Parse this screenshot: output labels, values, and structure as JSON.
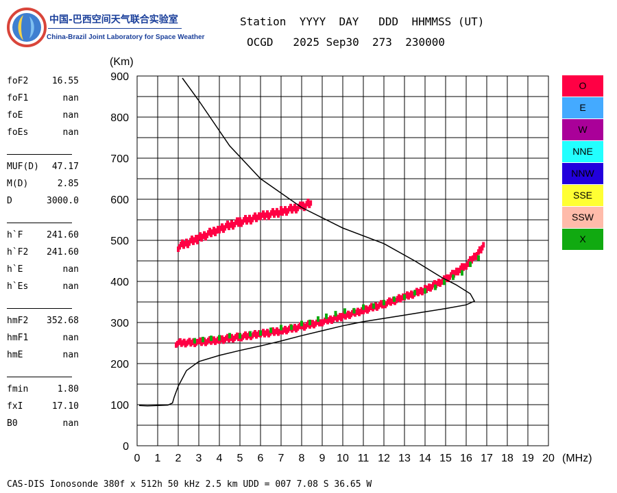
{
  "logo": {
    "cn_text": "中国-巴西空间天气联合实验室",
    "en_text": "China-Brazil Joint Laboratory for Space Weather"
  },
  "header": {
    "line1": "Station  YYYY  DAY   DDD  HHMMSS (UT)",
    "line2": "OCGD   2025 Sep30  273  230000"
  },
  "params": [
    {
      "key": "foF2",
      "value": "16.55"
    },
    {
      "key": "foF1",
      "value": "nan"
    },
    {
      "key": "foE",
      "value": "nan"
    },
    {
      "key": "foEs",
      "value": "nan"
    },
    {
      "key": "MUF(D)",
      "value": "47.17"
    },
    {
      "key": "M(D)",
      "value": "2.85"
    },
    {
      "key": "D",
      "value": "3000.0"
    },
    {
      "key": "h`F",
      "value": "241.60"
    },
    {
      "key": "h`F2",
      "value": "241.60"
    },
    {
      "key": "h`E",
      "value": "nan"
    },
    {
      "key": "h`Es",
      "value": "nan"
    },
    {
      "key": "hmF2",
      "value": "352.68"
    },
    {
      "key": "hmF1",
      "value": "nan"
    },
    {
      "key": "hmE",
      "value": "nan"
    },
    {
      "key": "fmin",
      "value": "1.80"
    },
    {
      "key": "fxI",
      "value": "17.10"
    },
    {
      "key": "B0",
      "value": "nan"
    }
  ],
  "legend": [
    {
      "label": "O",
      "color": "#ff0044"
    },
    {
      "label": "E",
      "color": "#44aaff"
    },
    {
      "label": "W",
      "color": "#aa0099"
    },
    {
      "label": "NNE",
      "color": "#22ffff"
    },
    {
      "label": "NNW",
      "color": "#2200dd"
    },
    {
      "label": "SSE",
      "color": "#ffff33"
    },
    {
      "label": "SSW",
      "color": "#ffbbaa"
    },
    {
      "label": "X",
      "color": "#11aa11"
    }
  ],
  "footer": "CAS-DIS Ionosonde 380f x 512h 50 kHz 2.5 km UDD = 007 7.08 S 36.65 W",
  "chart_data": {
    "type": "scatter",
    "xlabel": "(MHz)",
    "ylabel": "(Km)",
    "xlim": [
      0,
      20
    ],
    "ylim": [
      0,
      900
    ],
    "x_ticks": [
      0,
      1,
      2,
      3,
      4,
      5,
      6,
      7,
      8,
      9,
      10,
      11,
      12,
      13,
      14,
      15,
      16,
      17,
      18,
      19,
      20
    ],
    "y_ticks": [
      0,
      100,
      200,
      300,
      400,
      500,
      600,
      700,
      800,
      900
    ],
    "grid": true,
    "o_trace": [
      [
        1.9,
        250
      ],
      [
        3,
        252
      ],
      [
        4,
        258
      ],
      [
        5,
        265
      ],
      [
        6,
        272
      ],
      [
        7,
        280
      ],
      [
        8,
        290
      ],
      [
        9,
        302
      ],
      [
        10,
        315
      ],
      [
        11,
        330
      ],
      [
        12,
        345
      ],
      [
        13,
        362
      ],
      [
        14,
        380
      ],
      [
        15,
        405
      ],
      [
        16,
        440
      ],
      [
        16.6,
        470
      ],
      [
        16.9,
        490
      ]
    ],
    "o_upper_trace": [
      [
        2,
        485
      ],
      [
        3,
        505
      ],
      [
        4,
        528
      ],
      [
        5,
        545
      ],
      [
        6,
        558
      ],
      [
        7,
        570
      ],
      [
        8,
        582
      ],
      [
        8.5,
        592
      ]
    ],
    "x_trace": [
      [
        2.8,
        258
      ],
      [
        4,
        262
      ],
      [
        6,
        276
      ],
      [
        8,
        296
      ],
      [
        9.2,
        316
      ],
      [
        11,
        335
      ],
      [
        13,
        362
      ],
      [
        14.5,
        388
      ],
      [
        15.8,
        420
      ],
      [
        17,
        478
      ]
    ],
    "profile_line": [
      [
        0.1,
        98
      ],
      [
        0.5,
        97
      ],
      [
        1,
        98
      ],
      [
        1.5,
        99
      ],
      [
        1.72,
        104
      ],
      [
        1.8,
        118
      ],
      [
        2,
        145
      ],
      [
        2.4,
        183
      ],
      [
        3,
        205
      ],
      [
        4,
        220
      ],
      [
        5,
        232
      ],
      [
        6,
        243
      ],
      [
        7,
        255
      ],
      [
        8,
        268
      ],
      [
        9,
        280
      ],
      [
        10,
        292
      ],
      [
        11,
        302
      ],
      [
        12,
        310
      ],
      [
        13,
        318
      ],
      [
        14,
        326
      ],
      [
        15,
        334
      ],
      [
        16,
        343
      ],
      [
        16.4,
        352
      ],
      [
        16.2,
        370
      ],
      [
        15.5,
        392
      ],
      [
        14.8,
        410
      ],
      [
        13.5,
        450
      ],
      [
        12,
        492
      ],
      [
        10,
        530
      ],
      [
        8,
        580
      ],
      [
        6,
        650
      ],
      [
        4.5,
        730
      ],
      [
        3,
        840
      ],
      [
        2.2,
        895
      ]
    ]
  }
}
